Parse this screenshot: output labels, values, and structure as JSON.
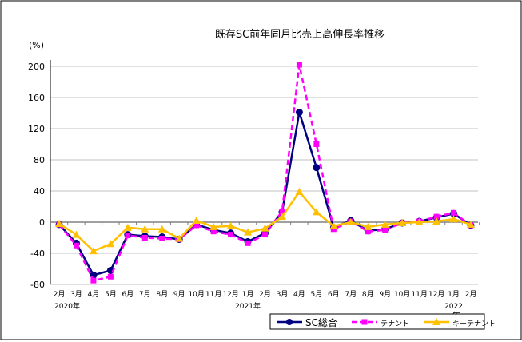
{
  "chart_data": {
    "type": "line",
    "title": "既存SC前年同月比売上高伸長率推移",
    "ylabel": "(%)",
    "xlabel": "年",
    "ylim": [
      -80,
      200
    ],
    "yticks": [
      -80,
      -40,
      0,
      40,
      80,
      120,
      160,
      200
    ],
    "categories": [
      "2月",
      "3月",
      "4月",
      "5月",
      "6月",
      "7月",
      "8月",
      "9月",
      "10月",
      "11月",
      "12月",
      "1月",
      "2月",
      "3月",
      "4月",
      "5月",
      "6月",
      "7月",
      "8月",
      "9月",
      "10月",
      "11月",
      "12月",
      "1月",
      "2月"
    ],
    "year_labels": [
      {
        "index": 0,
        "label": "2020年"
      },
      {
        "index": 11,
        "label": "2021年"
      },
      {
        "index": 23,
        "label": "2022"
      }
    ],
    "grid": true,
    "legend_position": "bottom-right",
    "series": [
      {
        "name": "SC総合",
        "color": "#000080",
        "marker": "circle",
        "dash": false,
        "values": [
          -3,
          -27,
          -68,
          -62,
          -16,
          -18,
          -19,
          -22,
          -3,
          -10,
          -14,
          -25,
          -14,
          13,
          141,
          70,
          -7,
          2,
          -11,
          -9,
          -1,
          1,
          6,
          11,
          -4
        ]
      },
      {
        "name": "テナント",
        "color": "#ff00ff",
        "marker": "square",
        "dash": true,
        "values": [
          -3,
          -30,
          -75,
          -70,
          -17,
          -20,
          -21,
          -22,
          -4,
          -12,
          -16,
          -27,
          -16,
          14,
          202,
          100,
          -9,
          1,
          -12,
          -10,
          -1,
          1,
          7,
          12,
          -4
        ]
      },
      {
        "name": "キーテナント",
        "color": "#ffc000",
        "marker": "triangle",
        "dash": false,
        "values": [
          -2,
          -16,
          -37,
          -28,
          -7,
          -9,
          -9,
          -21,
          2,
          -6,
          -5,
          -13,
          -8,
          7,
          39,
          13,
          -5,
          0,
          -6,
          -3,
          -1,
          0,
          1,
          4,
          -3
        ]
      }
    ]
  }
}
